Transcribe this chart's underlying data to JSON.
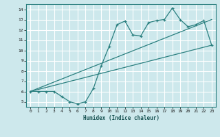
{
  "title": "",
  "xlabel": "Humidex (Indice chaleur)",
  "xlim": [
    -0.5,
    23.5
  ],
  "ylim": [
    4.5,
    14.5
  ],
  "xticks": [
    0,
    1,
    2,
    3,
    4,
    5,
    6,
    7,
    8,
    9,
    10,
    11,
    12,
    13,
    14,
    15,
    16,
    17,
    18,
    19,
    20,
    21,
    22,
    23
  ],
  "yticks": [
    5,
    6,
    7,
    8,
    9,
    10,
    11,
    12,
    13,
    14
  ],
  "bg_color": "#cde8ec",
  "grid_color": "#ffffff",
  "line_color": "#2a7f7f",
  "line1_x": [
    0,
    1,
    2,
    3,
    4,
    5,
    6,
    7,
    8,
    9,
    10,
    11,
    12,
    13,
    14,
    15,
    16,
    17,
    18,
    19,
    20,
    21,
    22,
    23
  ],
  "line1_y": [
    6.0,
    6.0,
    6.0,
    6.0,
    5.5,
    5.0,
    4.8,
    5.0,
    6.3,
    8.5,
    10.4,
    12.5,
    12.85,
    11.5,
    11.4,
    12.7,
    12.9,
    13.0,
    14.1,
    13.0,
    12.3,
    12.5,
    12.9,
    10.5
  ],
  "line2_x": [
    0,
    23
  ],
  "line2_y": [
    6.0,
    10.5
  ],
  "line3_x": [
    0,
    23
  ],
  "line3_y": [
    6.0,
    13.0
  ]
}
